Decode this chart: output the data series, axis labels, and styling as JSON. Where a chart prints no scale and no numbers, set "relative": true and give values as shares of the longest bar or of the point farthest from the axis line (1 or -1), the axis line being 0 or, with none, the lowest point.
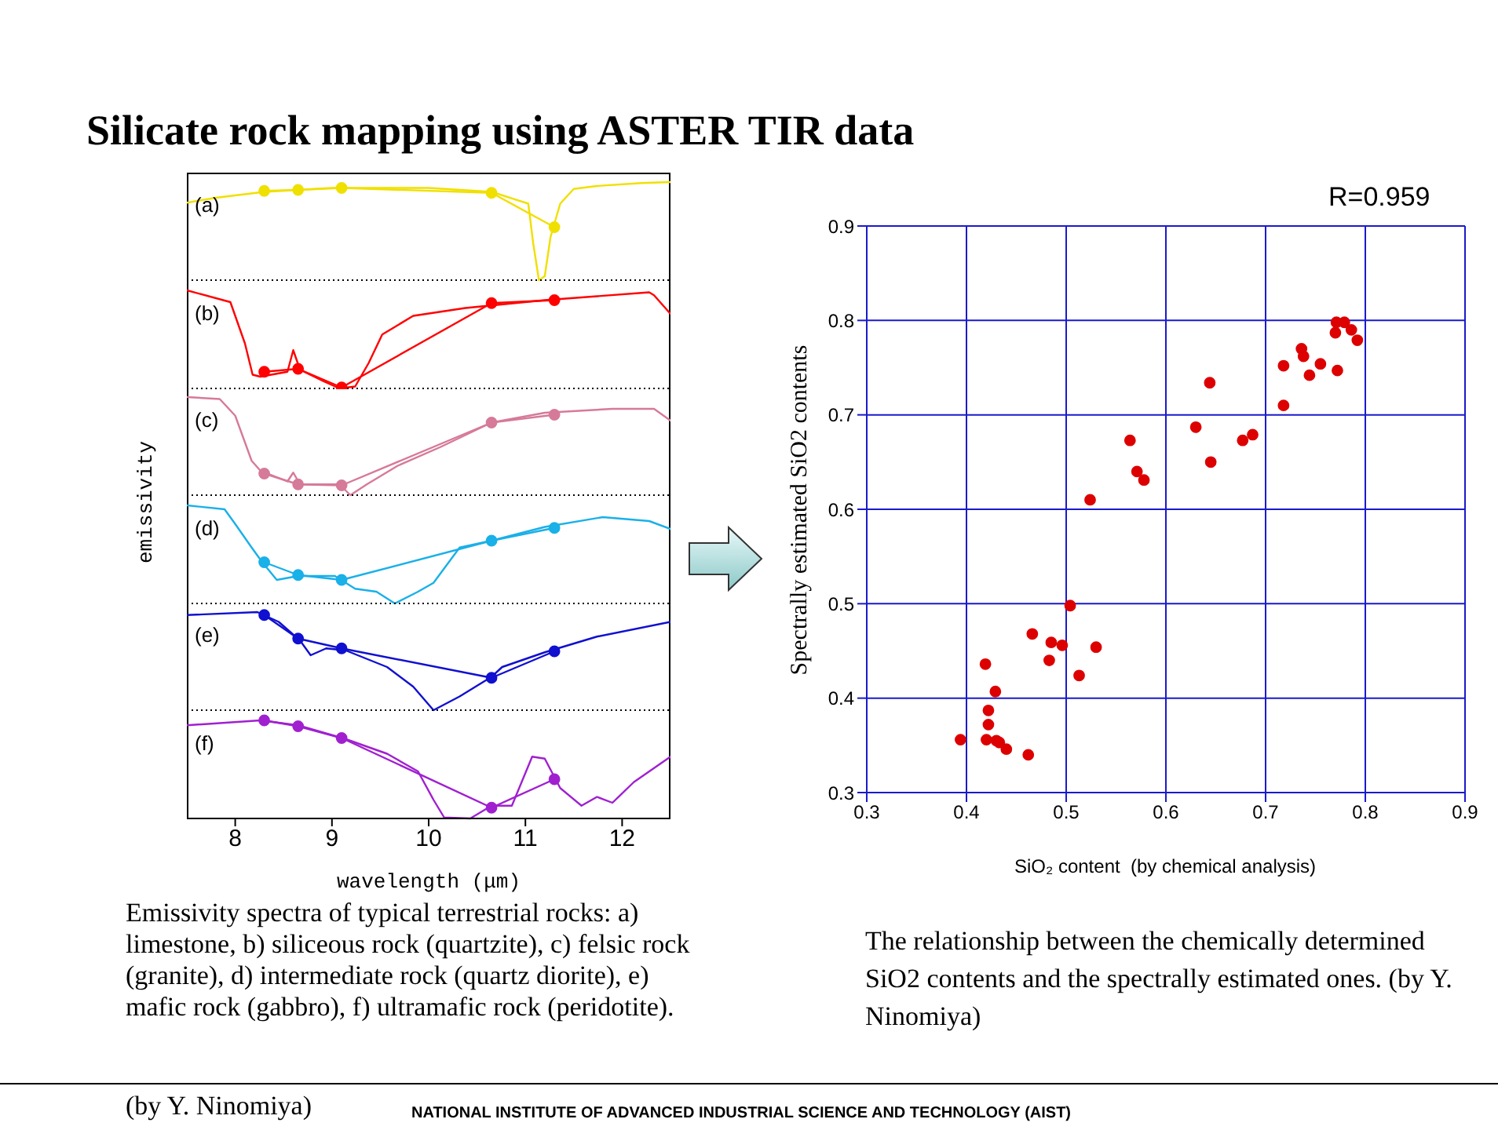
{
  "chart_data": [
    {
      "type": "line",
      "title": "Silicate rock mapping using ASTER TIR data",
      "subtitle": "(a)",
      "relative": true,
      "xlim": [
        7.5,
        12.5
      ],
      "xticks": [
        8,
        9,
        10,
        11,
        12
      ],
      "tick_labels": false,
      "series": [
        {
          "color": "#f0e000",
          "x": [
            7.5,
            7.8,
            8.3,
            9.0,
            10.0,
            10.65,
            11.03,
            11.08,
            11.14,
            11.2,
            11.26,
            11.36,
            11.5,
            11.74,
            12.2,
            12.5
          ],
          "values": [
            0.79,
            0.84,
            0.9,
            0.94,
            0.94,
            0.9,
            0.78,
            0.38,
            0,
            0.04,
            0.44,
            0.78,
            0.93,
            0.96,
            0.99,
            1.0
          ]
        },
        {
          "color": "#f0e000",
          "marker": "circle",
          "x": [
            8.3,
            8.65,
            9.1,
            10.65,
            11.3
          ],
          "values": [
            0.91,
            0.92,
            0.94,
            0.89,
            0.54
          ]
        }
      ]
    },
    {
      "type": "line",
      "subtitle": "(b)",
      "relative": true,
      "xlim": [
        7.5,
        12.5
      ],
      "xticks": [
        8,
        9,
        10,
        11,
        12
      ],
      "tick_labels": false,
      "series": [
        {
          "color": "#ff0000",
          "x": [
            7.5,
            7.95,
            8.1,
            8.18,
            8.26,
            8.54,
            8.6,
            8.67,
            8.92,
            9.08,
            9.24,
            9.38,
            9.52,
            9.84,
            10.38,
            11.2,
            12.28,
            12.33,
            12.5
          ],
          "values": [
            1.0,
            0.88,
            0.46,
            0.14,
            0.12,
            0.17,
            0.39,
            0.19,
            0.07,
            0,
            0.02,
            0.26,
            0.55,
            0.74,
            0.82,
            0.9,
            0.98,
            0.95,
            0.76
          ]
        },
        {
          "color": "#ff0000",
          "marker": "circle",
          "x": [
            8.3,
            8.65,
            9.1,
            10.65,
            11.3
          ],
          "values": [
            0.17,
            0.2,
            0.01,
            0.87,
            0.9
          ]
        }
      ]
    },
    {
      "type": "line",
      "subtitle": "(c)",
      "ylabel": "emissivity",
      "relative": true,
      "xlim": [
        7.5,
        12.5
      ],
      "xticks": [
        8,
        9,
        10,
        11,
        12
      ],
      "tick_labels": false,
      "series": [
        {
          "color": "#d67a9a",
          "x": [
            7.5,
            7.84,
            8.0,
            8.17,
            8.26,
            8.54,
            8.6,
            8.67,
            9.08,
            9.19,
            9.36,
            9.68,
            10.12,
            10.65,
            11.2,
            11.9,
            12.33,
            12.5
          ],
          "values": [
            1.0,
            0.98,
            0.81,
            0.35,
            0.25,
            0.14,
            0.23,
            0.11,
            0.11,
            0,
            0.11,
            0.3,
            0.49,
            0.74,
            0.84,
            0.88,
            0.88,
            0.76
          ]
        },
        {
          "color": "#d67a9a",
          "marker": "circle",
          "x": [
            8.3,
            8.65,
            9.1,
            10.65,
            11.3
          ],
          "values": [
            0.22,
            0.11,
            0.1,
            0.74,
            0.82
          ]
        }
      ]
    },
    {
      "type": "line",
      "subtitle": "(d)",
      "relative": true,
      "xlim": [
        7.5,
        12.5
      ],
      "xticks": [
        8,
        9,
        10,
        11,
        12
      ],
      "tick_labels": false,
      "series": [
        {
          "color": "#1ab0e8",
          "x": [
            7.5,
            7.89,
            8.0,
            8.17,
            8.28,
            8.43,
            8.65,
            9.03,
            9.24,
            9.46,
            9.65,
            9.89,
            10.05,
            10.32,
            10.65,
            11.2,
            11.8,
            12.28,
            12.5
          ],
          "values": [
            1.0,
            0.96,
            0.81,
            0.57,
            0.42,
            0.24,
            0.28,
            0.28,
            0.15,
            0.12,
            0,
            0.12,
            0.21,
            0.57,
            0.64,
            0.78,
            0.88,
            0.84,
            0.76
          ]
        },
        {
          "color": "#1ab0e8",
          "marker": "circle",
          "x": [
            8.3,
            8.65,
            9.1,
            10.65,
            11.3
          ],
          "values": [
            0.42,
            0.29,
            0.24,
            0.64,
            0.77
          ]
        }
      ]
    },
    {
      "type": "line",
      "subtitle": "(e)",
      "relative": true,
      "xlim": [
        7.5,
        12.5
      ],
      "xticks": [
        8,
        9,
        10,
        11,
        12
      ],
      "tick_labels": false,
      "series": [
        {
          "color": "#1010d0",
          "x": [
            7.5,
            8.23,
            8.45,
            8.67,
            8.78,
            8.94,
            9.14,
            9.57,
            9.84,
            10.05,
            10.32,
            10.65,
            10.76,
            11.2,
            11.74,
            12.5
          ],
          "values": [
            0.97,
            1.0,
            0.9,
            0.71,
            0.56,
            0.63,
            0.61,
            0.44,
            0.24,
            0,
            0.14,
            0.34,
            0.44,
            0.59,
            0.75,
            0.9
          ]
        },
        {
          "color": "#1010d0",
          "marker": "circle",
          "x": [
            8.3,
            8.65,
            9.1,
            10.65,
            11.3
          ],
          "values": [
            0.97,
            0.73,
            0.63,
            0.33,
            0.6
          ]
        }
      ]
    },
    {
      "type": "line",
      "subtitle": "(f)",
      "xlabel": "wavelength (μm)",
      "relative": true,
      "xlim": [
        7.5,
        12.5
      ],
      "xticks": [
        8,
        9,
        10,
        11,
        12
      ],
      "tick_labels": "x",
      "annotations": [
        "Emissivity spectra of typical terrestrial rocks: a) limestone, b) siliceous rock (quartzite), c) felsic rock (granite), d) intermediate rock (quartz diorite), e) mafic rock (gabbro), f) ultramafic rock (peridotite).",
        "(by Y. Ninomiya)",
        "NATIONAL INSTITUTE OF ADVANCED INDUSTRIAL SCIENCE AND TECHNOLOGY (AIST)"
      ],
      "series": [
        {
          "color": "#a020d0",
          "x": [
            7.5,
            8.26,
            8.65,
            9.14,
            9.57,
            9.89,
            10.05,
            10.16,
            10.43,
            10.65,
            10.86,
            11.07,
            11.2,
            11.36,
            11.58,
            11.74,
            11.9,
            12.12,
            12.5
          ],
          "values": [
            0.95,
            1.0,
            0.95,
            0.81,
            0.66,
            0.48,
            0.19,
            0.01,
            0,
            0.13,
            0.13,
            0.63,
            0.61,
            0.31,
            0.13,
            0.22,
            0.16,
            0.37,
            0.63
          ]
        },
        {
          "color": "#a020d0",
          "marker": "circle",
          "x": [
            8.3,
            8.65,
            9.1,
            10.65,
            11.3
          ],
          "values": [
            1.0,
            0.94,
            0.82,
            0.11,
            0.4
          ]
        }
      ]
    },
    {
      "type": "scatter",
      "xlabel": "SiO₂ content  (by chemical analysis)",
      "ylabel": "Spectrally estimated SiO2 contents",
      "xlim": [
        0.3,
        0.9
      ],
      "ylim": [
        0.3,
        0.9
      ],
      "xticks": [
        0.3,
        0.4,
        0.5,
        0.6,
        0.7,
        0.8,
        0.9
      ],
      "yticks": [
        0.3,
        0.4,
        0.5,
        0.6,
        0.7,
        0.8,
        0.9
      ],
      "grid": true,
      "marker": "circle",
      "annotations": [
        "R=0.959",
        "The relationship between the chemically determined SiO2 contents and the spectrally estimated ones. (by Y. Ninomiya)"
      ],
      "series": [
        {
          "color": "#dd0000",
          "x": [
            0.394,
            0.419,
            0.429,
            0.422,
            0.422,
            0.42,
            0.43,
            0.433,
            0.44,
            0.462,
            0.466,
            0.483,
            0.485,
            0.496,
            0.504,
            0.513,
            0.53,
            0.524,
            0.564,
            0.571,
            0.578,
            0.63,
            0.644,
            0.645,
            0.677,
            0.687,
            0.718,
            0.718,
            0.736,
            0.738,
            0.744,
            0.755,
            0.772,
            0.77,
            0.771,
            0.779,
            0.786,
            0.792
          ],
          "values": [
            0.356,
            0.436,
            0.407,
            0.387,
            0.372,
            0.356,
            0.355,
            0.353,
            0.346,
            0.34,
            0.468,
            0.44,
            0.459,
            0.456,
            0.498,
            0.424,
            0.454,
            0.61,
            0.673,
            0.64,
            0.631,
            0.687,
            0.734,
            0.65,
            0.673,
            0.679,
            0.752,
            0.71,
            0.77,
            0.762,
            0.742,
            0.754,
            0.747,
            0.787,
            0.798,
            0.798,
            0.79,
            0.779
          ]
        }
      ]
    }
  ]
}
